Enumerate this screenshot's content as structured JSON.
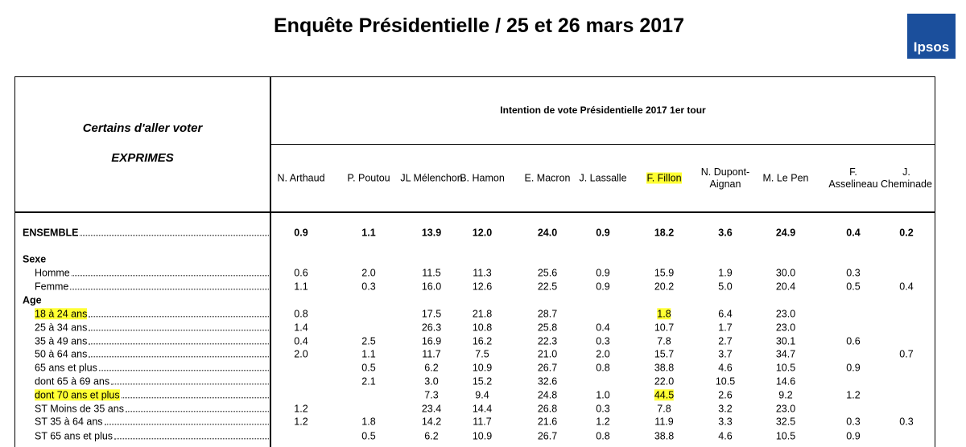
{
  "header": {
    "title": "Enquête Présidentielle / 25 et 26 mars 2017",
    "logo": "Ipsos"
  },
  "table": {
    "stub_title": "Certains d'aller voter",
    "stub_subtitle": "EXPRIMES",
    "group_header": "Intention de vote Présidentielle 2017 1er tour",
    "highlight_color": "#ffff33",
    "columns": [
      {
        "label": "N. Arthaud"
      },
      {
        "label": "P. Poutou"
      },
      {
        "label": "JL Mélenchon"
      },
      {
        "label": "B. Hamon"
      },
      {
        "label": "E. Macron"
      },
      {
        "label": "J. Lassalle"
      },
      {
        "label": "F. Fillon",
        "highlight": true
      },
      {
        "label": "N. Dupont-Aignan"
      },
      {
        "label": "M. Le Pen"
      },
      {
        "label": "F. Asselineau"
      },
      {
        "label": "J. Cheminade"
      }
    ],
    "rows": [
      {
        "label": "ENSEMBLE",
        "bold": true,
        "values": [
          "0.9",
          "1.1",
          "13.9",
          "12.0",
          "24.0",
          "0.9",
          "18.2",
          "3.6",
          "24.9",
          "0.4",
          "0.2"
        ]
      },
      {
        "section": "Sexe"
      },
      {
        "label": "Homme",
        "values": [
          "0.6",
          "2.0",
          "11.5",
          "11.3",
          "25.6",
          "0.9",
          "15.9",
          "1.9",
          "30.0",
          "0.3",
          null
        ]
      },
      {
        "label": "Femme",
        "values": [
          "1.1",
          "0.3",
          "16.0",
          "12.6",
          "22.5",
          "0.9",
          "20.2",
          "5.0",
          "20.4",
          "0.5",
          "0.4"
        ]
      },
      {
        "section": "Age"
      },
      {
        "label": "18 à 24 ans",
        "highlight": true,
        "highlight_cols": [
          6
        ],
        "values": [
          "0.8",
          null,
          "17.5",
          "21.8",
          "28.7",
          null,
          "1.8",
          "6.4",
          "23.0",
          null,
          null
        ]
      },
      {
        "label": "25 à 34 ans",
        "values": [
          "1.4",
          null,
          "26.3",
          "10.8",
          "25.8",
          "0.4",
          "10.7",
          "1.7",
          "23.0",
          null,
          null
        ]
      },
      {
        "label": "35 à 49 ans",
        "values": [
          "0.4",
          "2.5",
          "16.9",
          "16.2",
          "22.3",
          "0.3",
          "7.8",
          "2.7",
          "30.1",
          "0.6",
          null
        ]
      },
      {
        "label": "50 à 64 ans",
        "values": [
          "2.0",
          "1.1",
          "11.7",
          "7.5",
          "21.0",
          "2.0",
          "15.7",
          "3.7",
          "34.7",
          null,
          "0.7"
        ]
      },
      {
        "label": "65 ans et plus",
        "values": [
          null,
          "0.5",
          "6.2",
          "10.9",
          "26.7",
          "0.8",
          "38.8",
          "4.6",
          "10.5",
          "0.9",
          null
        ]
      },
      {
        "label": "dont 65 à 69 ans",
        "values": [
          null,
          "2.1",
          "3.0",
          "15.2",
          "32.6",
          null,
          "22.0",
          "10.5",
          "14.6",
          null,
          null
        ]
      },
      {
        "label": "dont 70 ans et plus",
        "highlight": true,
        "highlight_cols": [
          6
        ],
        "values": [
          null,
          null,
          "7.3",
          "9.4",
          "24.8",
          "1.0",
          "44.5",
          "2.6",
          "9.2",
          "1.2",
          null
        ]
      },
      {
        "label": "ST Moins de 35 ans",
        "values": [
          "1.2",
          null,
          "23.4",
          "14.4",
          "26.8",
          "0.3",
          "7.8",
          "3.2",
          "23.0",
          null,
          null
        ]
      },
      {
        "label": "ST 35 à 64 ans",
        "values": [
          "1.2",
          "1.8",
          "14.2",
          "11.7",
          "21.6",
          "1.2",
          "11.9",
          "3.3",
          "32.5",
          "0.3",
          "0.3"
        ]
      },
      {
        "label": "ST 65 ans et plus",
        "values": [
          null,
          "0.5",
          "6.2",
          "10.9",
          "26.7",
          "0.8",
          "38.8",
          "4.6",
          "10.5",
          "0.9",
          null
        ]
      }
    ]
  }
}
